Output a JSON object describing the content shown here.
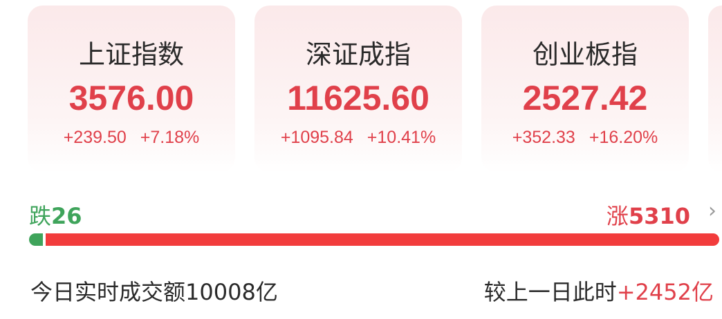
{
  "indices": [
    {
      "name": "上证指数",
      "value": "3576.00",
      "change": "+239.50",
      "pct": "+7.18%"
    },
    {
      "name": "深证成指",
      "value": "11625.60",
      "change": "+1095.84",
      "pct": "+10.41%"
    },
    {
      "name": "创业板指",
      "value": "2527.42",
      "change": "+352.33",
      "pct": "+16.20%"
    }
  ],
  "breadth": {
    "down_label": "跌",
    "down_count": "26",
    "up_label": "涨",
    "up_count": "5310",
    "down_color": "#3fa45b",
    "up_color": "#f23c3c"
  },
  "turnover": {
    "label": "今日实时成交额",
    "value": "10008亿",
    "compare_label": "较上一日此时",
    "compare_value": "+2452亿"
  }
}
